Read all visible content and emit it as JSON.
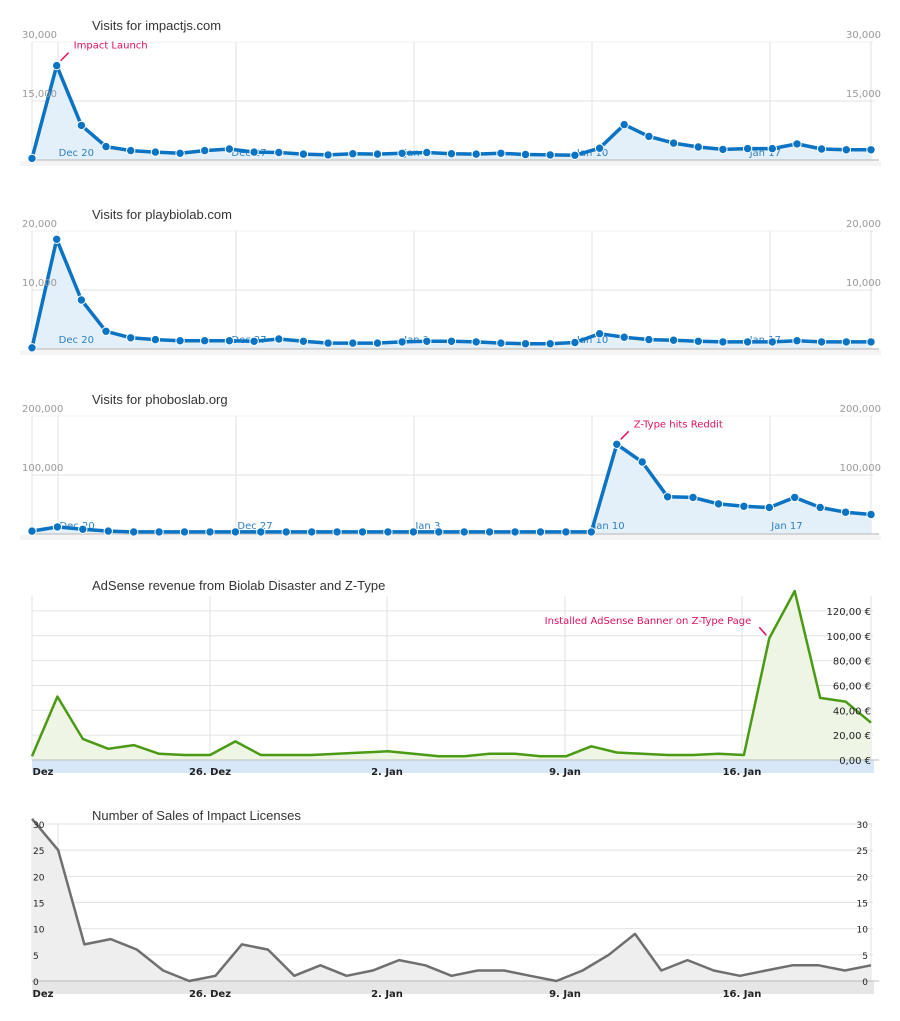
{
  "colors": {
    "blue": "#0b73c4",
    "blue_fill": "#e4f0f9",
    "green": "#4a9a14",
    "green_fill": "#eef5e4",
    "gray": "#6f6f6f",
    "gray_fill": "#eeeeee",
    "annotation": "#e0115f"
  },
  "chart_data": [
    {
      "id": "impactjs",
      "type": "line",
      "title": "Visits for impactjs.com",
      "style": "blue",
      "y_ticks": [
        {
          "value": 15000,
          "label": "15,000"
        },
        {
          "value": 30000,
          "label": "30,000"
        }
      ],
      "ylim": [
        0,
        30000
      ],
      "x_labels": [
        "Dec 20",
        "Dec 27",
        "Jan 3",
        "Jan 10",
        "Jan 17"
      ],
      "values": [
        400,
        24000,
        8800,
        3400,
        2400,
        2000,
        1700,
        2400,
        2800,
        2000,
        1900,
        1500,
        1300,
        1600,
        1500,
        1700,
        1900,
        1600,
        1500,
        1700,
        1400,
        1300,
        1200,
        3000,
        9000,
        6000,
        4300,
        3300,
        2700,
        2900,
        2900,
        4100,
        2800,
        2600,
        2600
      ],
      "annotations": [
        {
          "index": 1,
          "text": "Impact Launch"
        }
      ]
    },
    {
      "id": "playbiolab",
      "type": "line",
      "title": "Visits for playbiolab.com",
      "style": "blue",
      "y_ticks": [
        {
          "value": 10000,
          "label": "10,000"
        },
        {
          "value": 20000,
          "label": "20,000"
        }
      ],
      "ylim": [
        0,
        20000
      ],
      "x_labels": [
        "Dec 20",
        "Dec 27",
        "Jan 3",
        "Jan 10",
        "Jan 17"
      ],
      "values": [
        200,
        18600,
        8300,
        3000,
        1900,
        1600,
        1400,
        1400,
        1400,
        1300,
        1700,
        1300,
        1000,
        1000,
        1000,
        1200,
        1300,
        1300,
        1200,
        1000,
        900,
        900,
        1100,
        2600,
        2000,
        1600,
        1500,
        1300,
        1200,
        1200,
        1200,
        1400,
        1200,
        1200,
        1200
      ],
      "annotations": []
    },
    {
      "id": "phoboslab",
      "type": "line",
      "title": "Visits for phoboslab.org",
      "style": "blue",
      "y_ticks": [
        {
          "value": 100000,
          "label": "100,000"
        },
        {
          "value": 200000,
          "label": "200,000"
        }
      ],
      "ylim": [
        0,
        200000
      ],
      "x_labels": [
        "Dec 20",
        "Dec 27",
        "Jan 3",
        "Jan 10",
        "Jan 17"
      ],
      "values": [
        5000,
        12000,
        8000,
        5000,
        3500,
        3500,
        3500,
        3500,
        3500,
        3500,
        3500,
        3500,
        3500,
        3500,
        3500,
        3500,
        3500,
        3500,
        3500,
        3500,
        3500,
        3500,
        3500,
        152000,
        122000,
        63000,
        62000,
        51000,
        47000,
        45000,
        62000,
        45000,
        37000,
        33000
      ],
      "annotations": [
        {
          "index": 23,
          "text": "Z-Type hits Reddit"
        }
      ]
    },
    {
      "id": "adsense",
      "type": "area",
      "title": "AdSense revenue from Biolab Disaster and Z-Type",
      "style": "green",
      "y_ticks": [
        {
          "value": 0,
          "label": "0,00 €"
        },
        {
          "value": 20,
          "label": "20,00 €"
        },
        {
          "value": 40,
          "label": "40,00 €"
        },
        {
          "value": 60,
          "label": "60,00 €"
        },
        {
          "value": 80,
          "label": "80,00 €"
        },
        {
          "value": 100,
          "label": "100,00 €"
        },
        {
          "value": 120,
          "label": "120,00 €"
        }
      ],
      "ylim": [
        0,
        132
      ],
      "x_labels": [
        "Dez",
        "26. Dez",
        "2. Jan",
        "9. Jan",
        "16. Jan"
      ],
      "values": [
        3,
        51,
        17,
        9,
        12,
        5,
        4,
        4,
        15,
        4,
        4,
        4,
        5,
        6,
        7,
        5,
        3,
        3,
        5,
        5,
        3,
        3,
        11,
        6,
        5,
        4,
        4,
        5,
        4,
        98,
        136,
        50,
        47,
        30
      ],
      "annotations": [
        {
          "index": 29,
          "text": "Installed AdSense Banner on Z-Type Page"
        }
      ]
    },
    {
      "id": "sales",
      "type": "area",
      "title": "Number of Sales of Impact Licenses",
      "style": "gray",
      "y_ticks": [
        {
          "value": 0,
          "label": "0"
        },
        {
          "value": 5,
          "label": "5"
        },
        {
          "value": 10,
          "label": "10"
        },
        {
          "value": 15,
          "label": "15"
        },
        {
          "value": 20,
          "label": "20"
        },
        {
          "value": 25,
          "label": "25"
        },
        {
          "value": 30,
          "label": "30"
        }
      ],
      "ylim": [
        0,
        30
      ],
      "x_labels": [
        "Dez",
        "26. Dez",
        "2. Jan",
        "9. Jan",
        "16. Jan"
      ],
      "values": [
        31,
        25,
        7,
        8,
        6,
        2,
        0,
        1,
        7,
        6,
        1,
        3,
        1,
        2,
        4,
        3,
        1,
        2,
        2,
        1,
        0,
        2,
        5,
        9,
        2,
        4,
        2,
        1,
        2,
        3,
        3,
        2,
        3
      ],
      "annotations": []
    }
  ]
}
